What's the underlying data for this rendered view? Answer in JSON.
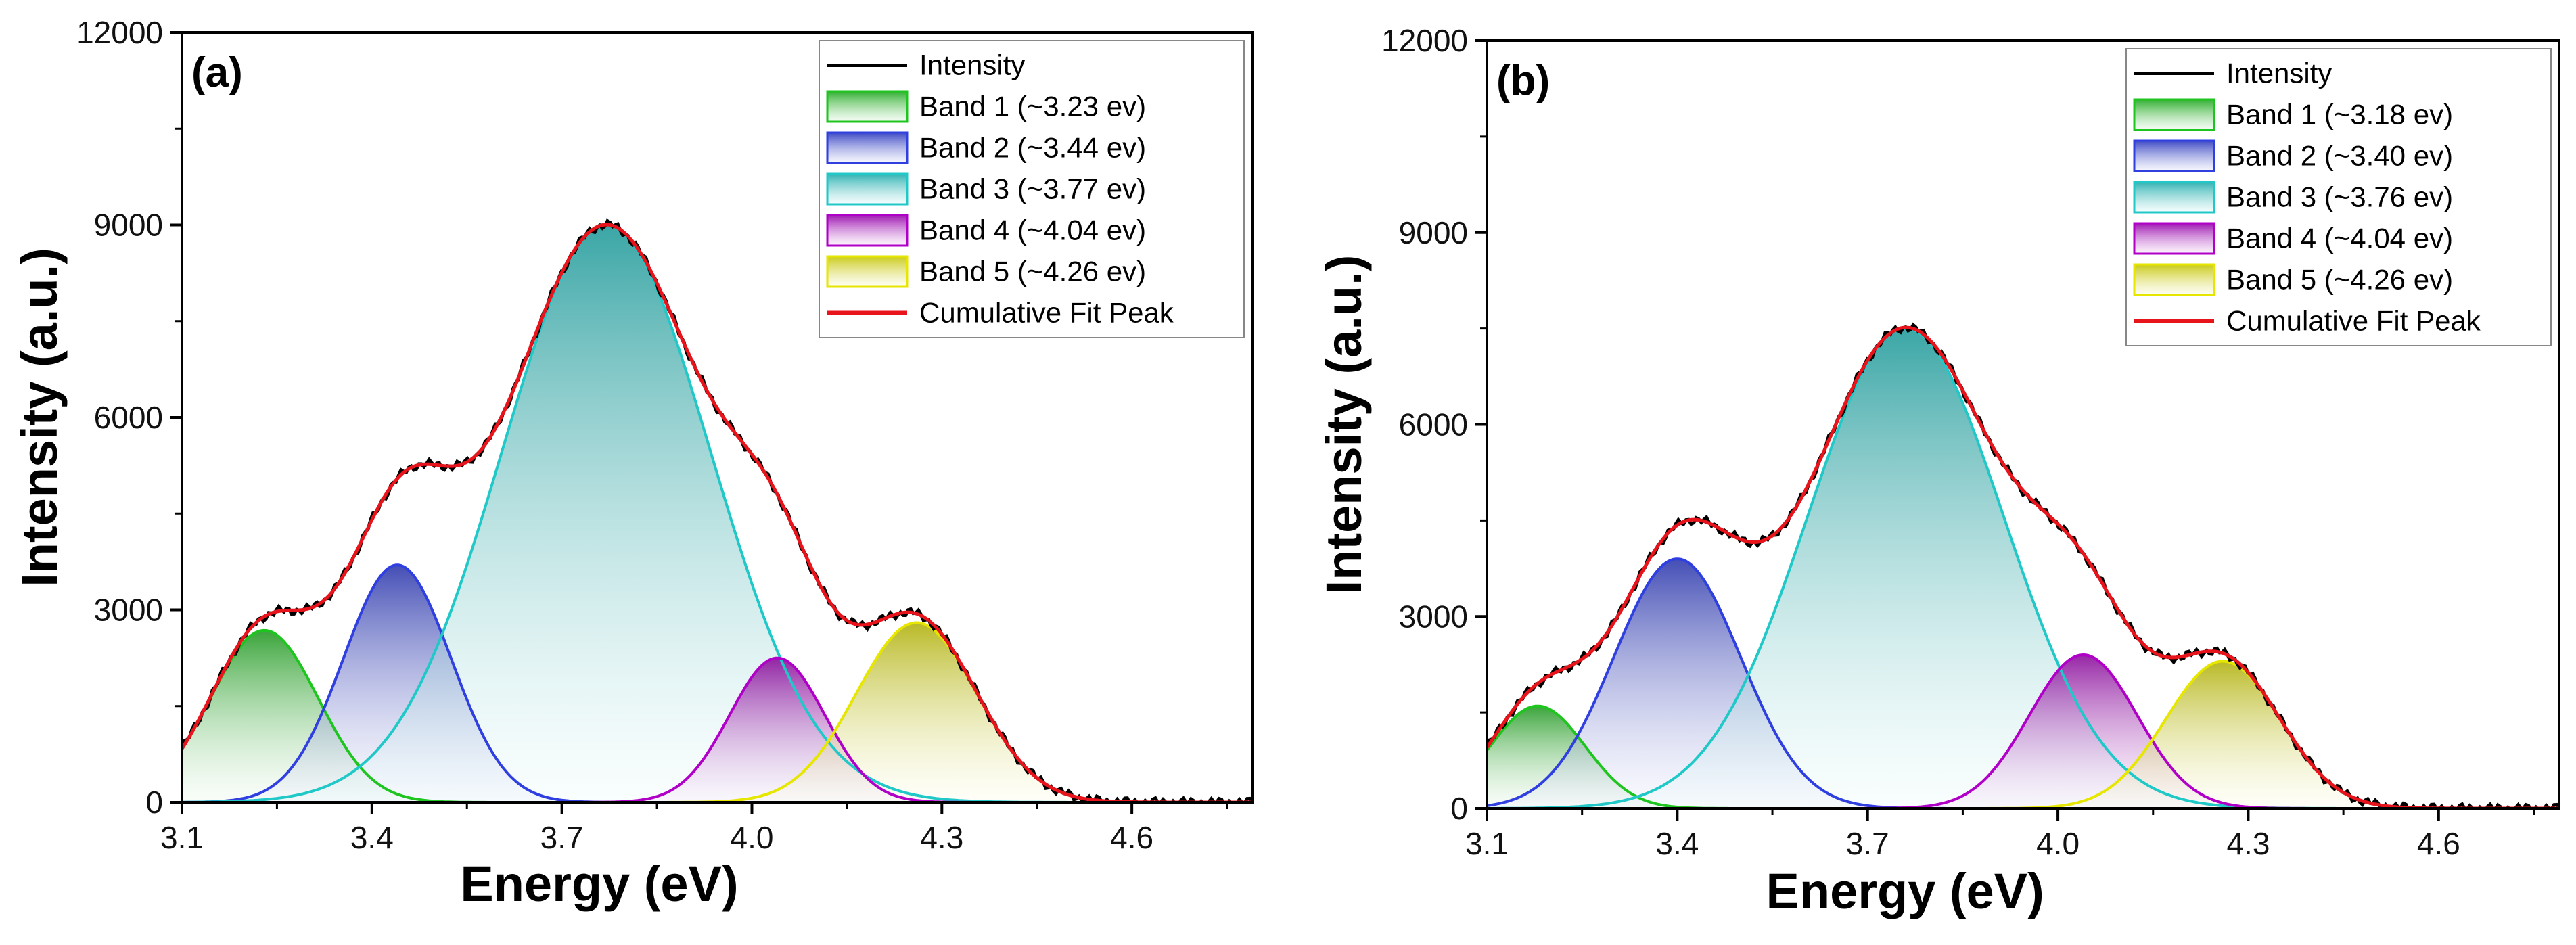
{
  "chart_data": [
    {
      "type": "area",
      "panel": "(a)",
      "xlabel": "Energy (eV)",
      "ylabel": "Intensity (a.u.)",
      "xlim": [
        3.1,
        4.79
      ],
      "ylim": [
        0,
        12000
      ],
      "xticks": [
        "3.1",
        "3.4",
        "3.7",
        "4.0",
        "4.3",
        "4.6"
      ],
      "yticks": [
        "0",
        "3000",
        "6000",
        "9000",
        "12000"
      ],
      "legend_position": "top-right",
      "bands": [
        {
          "name": "Band 1 (~3.23 ev)",
          "center": 3.23,
          "amplitude": 2680,
          "sigma": 0.085,
          "color": "#1fc51f"
        },
        {
          "name": "Band 2 (~3.44 ev)",
          "center": 3.44,
          "amplitude": 3700,
          "sigma": 0.085,
          "color": "#2f3fe0"
        },
        {
          "name": "Band 3 (~3.77 ev)",
          "center": 3.77,
          "amplitude": 9000,
          "sigma": 0.165,
          "color": "#20c8c8"
        },
        {
          "name": "Band 4 (~4.04 ev)",
          "center": 4.04,
          "amplitude": 2250,
          "sigma": 0.075,
          "color": "#b000c8"
        },
        {
          "name": "Band 5 (~4.26 ev)",
          "center": 4.26,
          "amplitude": 2800,
          "sigma": 0.095,
          "color": "#e6e600"
        }
      ],
      "intensity_label": "Intensity",
      "fit_label": "Cumulative Fit Peak"
    },
    {
      "type": "area",
      "panel": "(b)",
      "xlabel": "Energy (eV)",
      "ylabel": "Intensity (a.u.)",
      "xlim": [
        3.1,
        4.79
      ],
      "ylim": [
        0,
        12000
      ],
      "xticks": [
        "3.1",
        "3.4",
        "3.7",
        "4.0",
        "4.3",
        "4.6"
      ],
      "yticks": [
        "0",
        "3000",
        "6000",
        "9000",
        "12000"
      ],
      "legend_position": "top-right",
      "bands": [
        {
          "name": "Band 1 (~3.18 ev)",
          "center": 3.18,
          "amplitude": 1600,
          "sigma": 0.075,
          "color": "#1fc51f"
        },
        {
          "name": "Band 2 (~3.40 ev)",
          "center": 3.4,
          "amplitude": 3900,
          "sigma": 0.1,
          "color": "#2f3fe0"
        },
        {
          "name": "Band 3 (~3.76 ev)",
          "center": 3.76,
          "amplitude": 7500,
          "sigma": 0.155,
          "color": "#20c8c8"
        },
        {
          "name": "Band 4 (~4.04 ev)",
          "center": 4.04,
          "amplitude": 2400,
          "sigma": 0.085,
          "color": "#b000c8"
        },
        {
          "name": "Band 5 (~4.26 ev)",
          "center": 4.26,
          "amplitude": 2300,
          "sigma": 0.09,
          "color": "#e6e600"
        }
      ],
      "intensity_label": "Intensity",
      "fit_label": "Cumulative Fit Peak"
    }
  ]
}
